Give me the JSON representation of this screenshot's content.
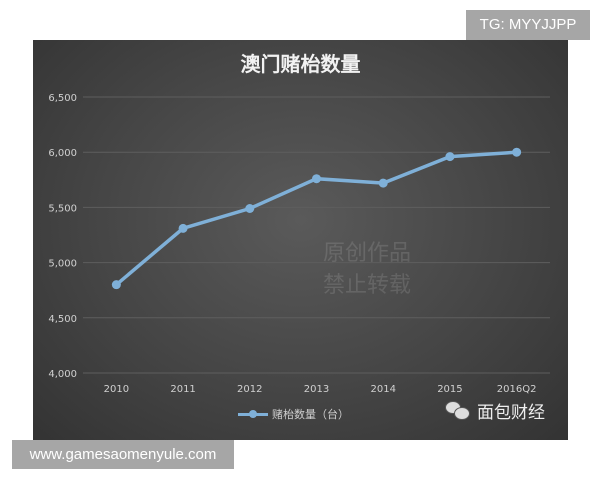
{
  "badge_top": "TG: MYYJJPP",
  "badge_bottom": "www.gamesaomenyule.com",
  "brand": "面包财经",
  "watermark": {
    "logo": "面包财经",
    "line1": "原创作品",
    "line2": "禁止转载"
  },
  "colors": {
    "line": "#7fb0d8",
    "background": "#444444",
    "grid": "#5e5e5e"
  },
  "chart_data": {
    "type": "line",
    "title": "澳门赌枱数量",
    "categories": [
      "2010",
      "2011",
      "2012",
      "2013",
      "2014",
      "2015",
      "2016Q2"
    ],
    "series": [
      {
        "name": "赌枱数量（台）",
        "values": [
          4800,
          5310,
          5490,
          5760,
          5720,
          5960,
          6000
        ]
      }
    ],
    "ylim": [
      4000,
      6500
    ],
    "yticks": [
      4000,
      4500,
      5000,
      5500,
      6000,
      6500
    ],
    "ytick_labels": [
      "4,000",
      "4,500",
      "5,000",
      "5,500",
      "6,000",
      "6,500"
    ],
    "grid": true,
    "legend": "bottom"
  }
}
